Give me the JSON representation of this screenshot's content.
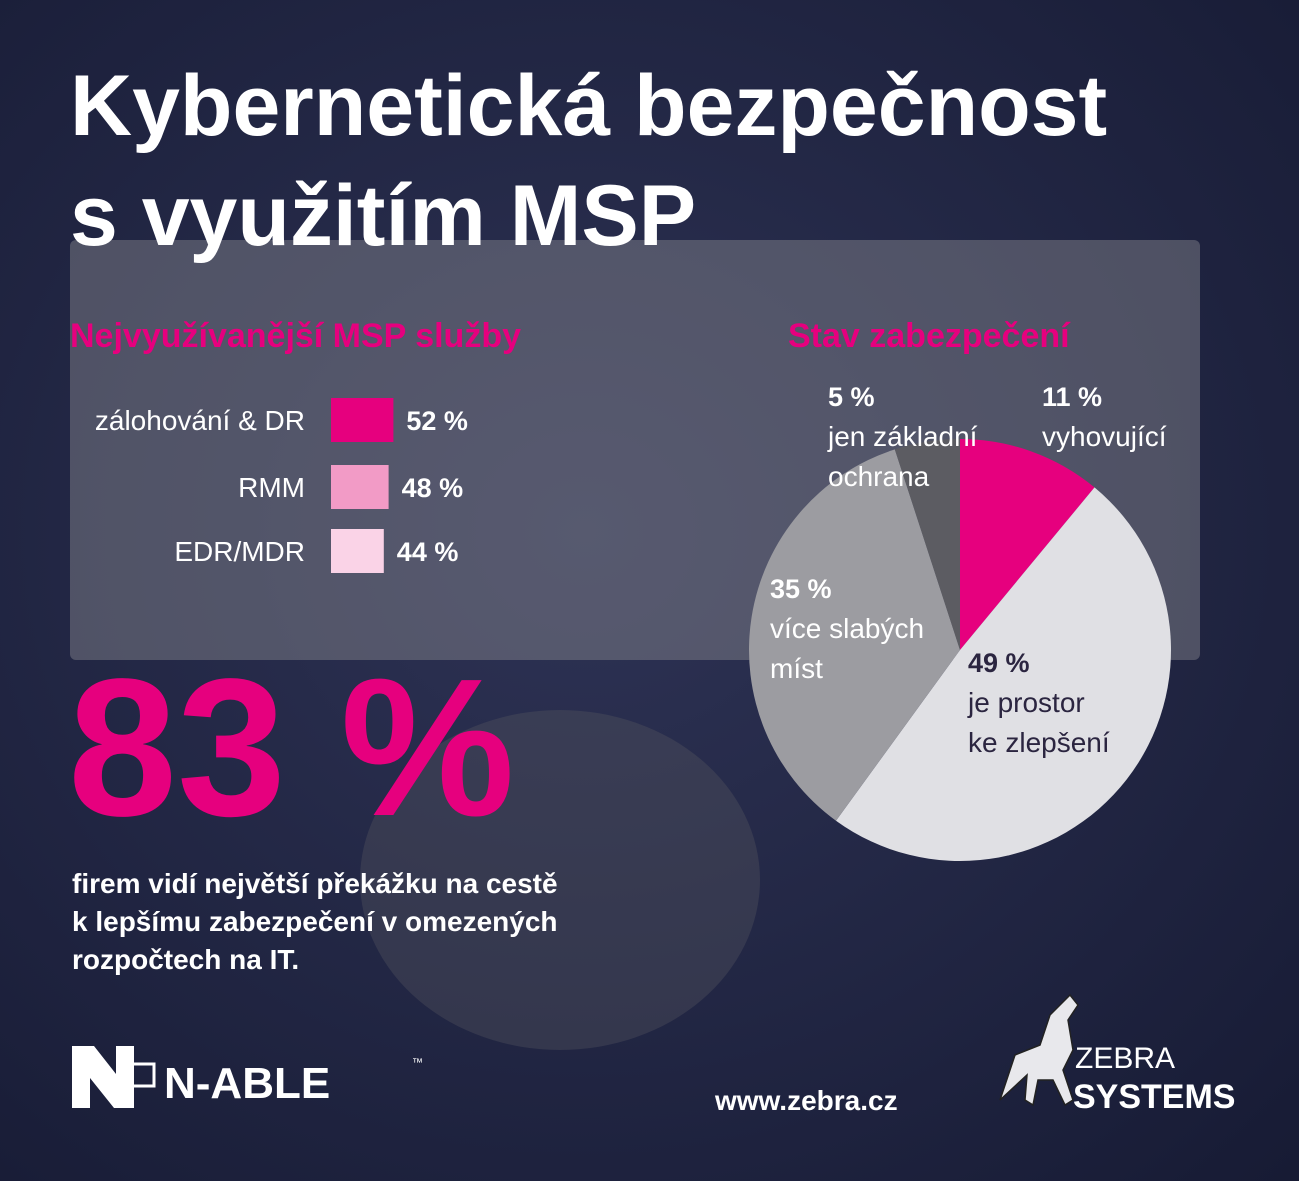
{
  "title": [
    "Kybernetická bezpečnost",
    "s využitím MSP"
  ],
  "chart_data": [
    {
      "type": "bar",
      "title": "Nejvyužívanější MSP služby",
      "categories": [
        "zálohování & DR",
        "RMM",
        "EDR/MDR"
      ],
      "values": [
        52,
        48,
        44
      ],
      "value_labels": [
        "52 %",
        "48 %",
        "44 %"
      ],
      "colors": [
        "#e6007e",
        "#f29bc6",
        "#fad3e7"
      ]
    },
    {
      "type": "pie",
      "title": "Stav zabezpečení",
      "categories": [
        [
          "vyhovující"
        ],
        [
          "je prostor",
          "ke zlepšení"
        ],
        [
          "více slabých",
          "míst"
        ],
        [
          "jen základní",
          "ochrana"
        ]
      ],
      "values": [
        11,
        49,
        35,
        5
      ],
      "value_labels": [
        "11 %",
        "49 %",
        "35 %",
        "5 %"
      ],
      "colors": [
        "#e6007e",
        "#e0e0e4",
        "#9c9ca1",
        "#5c5c62"
      ]
    }
  ],
  "headline": {
    "stat": "83 %",
    "text": [
      "firem vidí největší překážku na cestě",
      "k lepšímu zabezpečení v omezených",
      "rozpočtech na IT."
    ]
  },
  "footer": {
    "nable": "N-ABLE",
    "trademark": "™",
    "url": "www.zebra.cz",
    "zebra": "ZEBRA",
    "systems": "SYSTEMS"
  }
}
